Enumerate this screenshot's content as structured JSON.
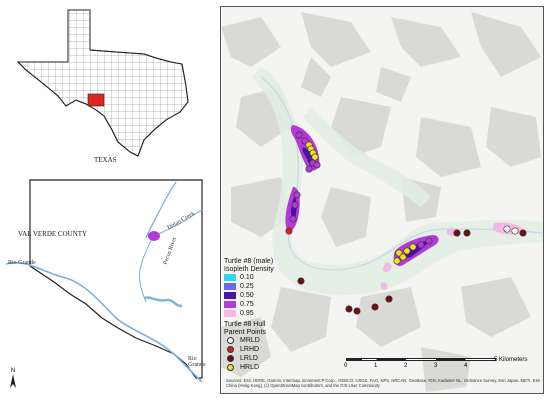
{
  "inset_texas": {
    "label": "TEXAS"
  },
  "inset_county": {
    "label": "VAL VERDE COUNTY",
    "rivers": [
      "Rio Grande",
      "Rio Grande",
      "Pecos River",
      "Dolan Creek"
    ]
  },
  "north_arrow": {
    "label": "N"
  },
  "legend": {
    "title": "Turtle #8 (male)",
    "isopleth_title": "Isopleth Density",
    "isopleths": [
      {
        "label": "0.10",
        "color": "#2fd4ee"
      },
      {
        "label": "0.25",
        "color": "#6a6ae8"
      },
      {
        "label": "0.50",
        "color": "#4b12a8"
      },
      {
        "label": "0.75",
        "color": "#b23ad6"
      },
      {
        "label": "0.95",
        "color": "#f3b8e6"
      }
    ],
    "points_title_1": "Turtle #8 Hull",
    "points_title_2": "Parent Points",
    "points": [
      {
        "label": "MRLD",
        "color": "#ffffff"
      },
      {
        "label": "LRHD",
        "color": "#d8221f"
      },
      {
        "label": "LRLD",
        "color": "#6e0f12"
      },
      {
        "label": "HRLD",
        "color": "#f2e11c"
      }
    ]
  },
  "scale": {
    "ticks": [
      "0",
      "1",
      "2",
      "3",
      "4",
      "5 Kilometers"
    ]
  },
  "sources": "Sources: Esri, HERE, Garmin, Intermap, increment P Corp., GEBCO, USGS, FAO, NPS, NRCAN, GeoBase, IGN, Kadaster NL, Ordnance Survey, Esri Japan, METI, Esri China (Hong Kong), (c) OpenStreetMap contributors, and the GIS User Community"
}
